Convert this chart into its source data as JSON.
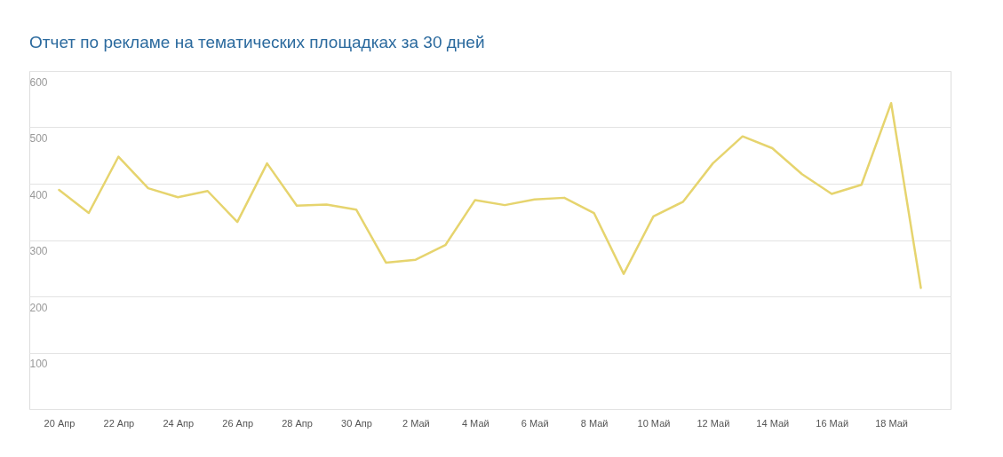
{
  "chart_data": {
    "type": "line",
    "title": "Отчет по рекламе на тематических площадках за 30 дней",
    "categories": [
      "20 Апр",
      null,
      "22 Апр",
      null,
      "24 Апр",
      null,
      "26 Апр",
      null,
      "28 Апр",
      null,
      "30 Апр",
      null,
      "2 Май",
      null,
      "4 Май",
      null,
      "6 Май",
      null,
      "8 Май",
      null,
      "10 Май",
      null,
      "12 Май",
      null,
      "14 Май",
      null,
      "16 Май",
      null,
      "18 Май",
      null
    ],
    "series": [
      {
        "color": "#e6d46e",
        "values": [
          389,
          348,
          448,
          392,
          376,
          387,
          332,
          436,
          361,
          363,
          354,
          260,
          265,
          291,
          371,
          362,
          372,
          375,
          348,
          240,
          342,
          368,
          436,
          484,
          463,
          417,
          382,
          398,
          543,
          215
        ]
      }
    ],
    "ylim": [
      0,
      600
    ],
    "yticks": [
      {
        "value": 0,
        "label": null
      },
      100,
      200,
      300,
      400,
      500,
      600
    ],
    "grid": "y",
    "marker": "none",
    "line_style": "solid"
  }
}
